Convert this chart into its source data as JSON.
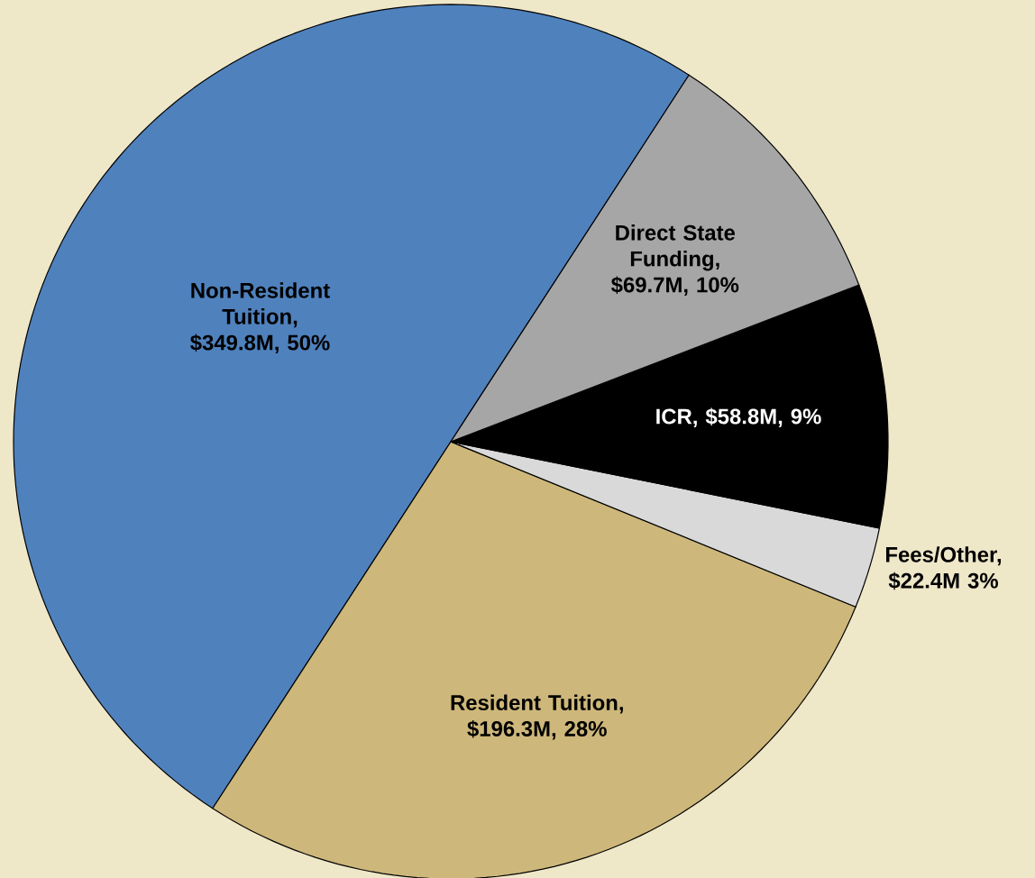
{
  "chart_data": {
    "type": "pie",
    "categories": [
      "Non-Resident Tuition, $349.8M, 50%",
      "Resident Tuition, $196.3M, 28%",
      "Fees/Other, $22.4M 3%",
      "ICR, $58.8M, 9%",
      "Direct State Funding, $69.7M, 10%"
    ],
    "values": [
      50,
      28,
      3,
      9,
      10
    ],
    "colors": [
      "#4f81bd",
      "#cdb77a",
      "#d9d9d9",
      "#000000",
      "#a6a6a6"
    ]
  }
}
